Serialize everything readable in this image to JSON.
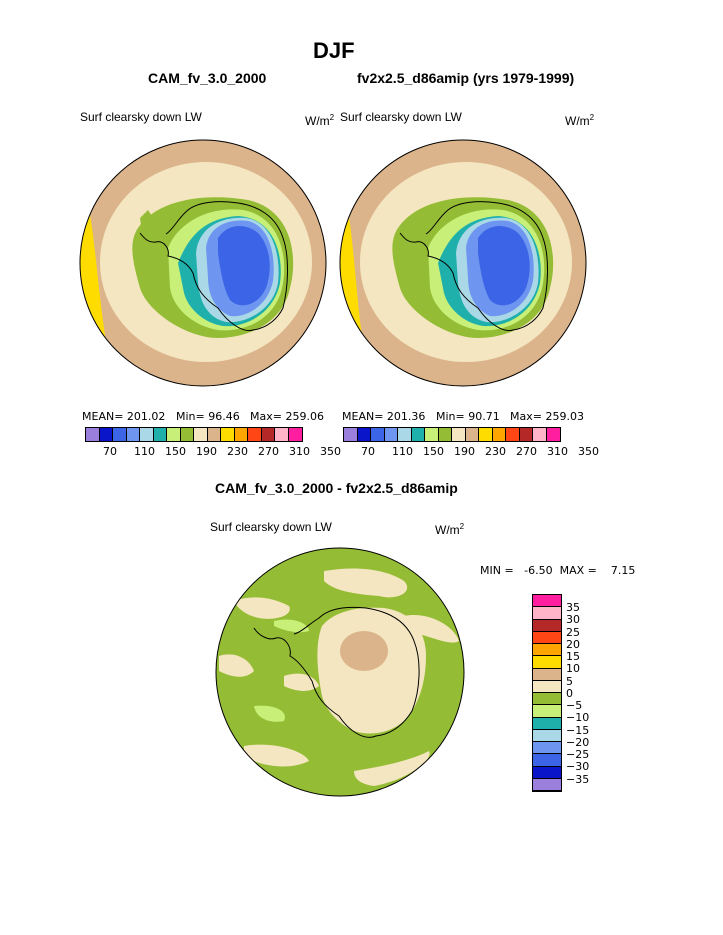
{
  "title": "DJF",
  "left_panel": {
    "case": "CAM_fv_3.0_2000",
    "variable": "Surf clearsky down LW",
    "units_base": "W/m",
    "units_exp": "2",
    "mean": "MEAN=  201.02",
    "min": "Min=   96.46",
    "max": "Max=  259.06"
  },
  "right_panel": {
    "case": "fv2x2.5_d86amip (yrs 1979-1999)",
    "variable": "Surf clearsky down LW",
    "units_base": "W/m",
    "units_exp": "2",
    "mean": "MEAN=  201.36",
    "min": "Min=   90.71",
    "max": "Max=  259.03"
  },
  "abs_colorbar": {
    "colors": [
      "#9a7fdc",
      "#0a14c8",
      "#3c64e6",
      "#6e96f0",
      "#aad8e6",
      "#20b0ac",
      "#c8f078",
      "#94bc34",
      "#f4e6c0",
      "#dcb48c",
      "#ffdc00",
      "#ffa500",
      "#ff4614",
      "#b42828",
      "#ffb4c8",
      "#ff1ea0"
    ],
    "ticks": [
      "70",
      "110",
      "150",
      "190",
      "230",
      "270",
      "310",
      "350"
    ]
  },
  "diff_panel": {
    "title": "CAM_fv_3.0_2000 - fv2x2.5_d86amip",
    "variable": "Surf clearsky down LW",
    "units_base": "W/m",
    "units_exp": "2",
    "minmax": "MIN =   -6.50  MAX =    7.15"
  },
  "diff_colorbar": {
    "colors_top_to_bottom": [
      "#ff1ea0",
      "#ffb4c8",
      "#b42828",
      "#ff4614",
      "#ffa500",
      "#ffdc00",
      "#dcb48c",
      "#f4e6c0",
      "#94bc34",
      "#c8f078",
      "#20b0ac",
      "#aad8e6",
      "#6e96f0",
      "#3c64e6",
      "#0a14c8",
      "#9a7fdc"
    ],
    "ticks_top_to_bottom": [
      "35",
      "30",
      "25",
      "20",
      "15",
      "10",
      "5",
      "0",
      "−5",
      "−10",
      "−15",
      "−20",
      "−25",
      "−30",
      "−35"
    ]
  }
}
